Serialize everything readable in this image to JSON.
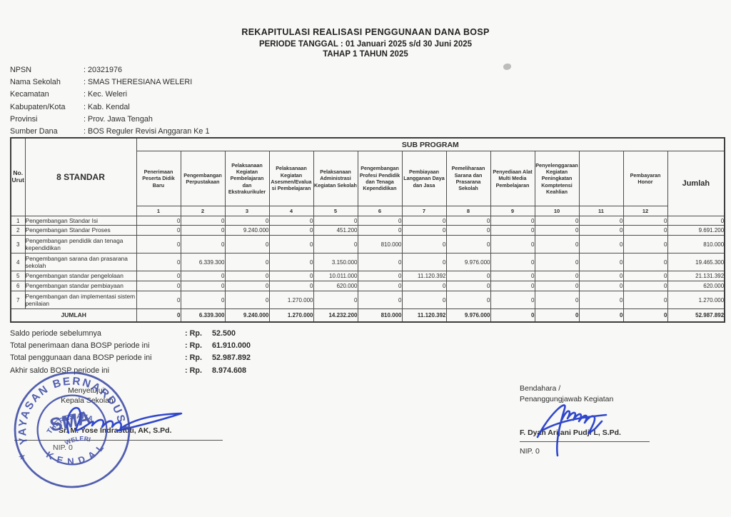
{
  "title": {
    "line1": "REKAPITULASI REALISASI PENGGUNAAN DANA BOSP",
    "line2": "PERIODE TANGGAL : 01 Januari 2025 s/d 30 Juni 2025",
    "line3": "TAHAP 1 TAHUN 2025"
  },
  "info": {
    "rows": [
      {
        "label": "NPSN",
        "value": ": 20321976"
      },
      {
        "label": "Nama Sekolah",
        "value": ": SMAS THERESIANA WELERI"
      },
      {
        "label": "Kecamatan",
        "value": ": Kec. Weleri"
      },
      {
        "label": "Kabupaten/Kota",
        "value": ": Kab. Kendal"
      },
      {
        "label": "Provinsi",
        "value": ": Prov. Jawa Tengah"
      },
      {
        "label": "Sumber Dana",
        "value": ": BOS Reguler Revisi Anggaran Ke 1"
      }
    ]
  },
  "table": {
    "corner": {
      "no_line1": "No.",
      "no_line2": "Urut"
    },
    "standar_label": "8 STANDAR",
    "sub_program_label": "SUB PROGRAM",
    "jumlah_label": "Jumlah",
    "columns": [
      {
        "num": "1",
        "label": "Penerimaan Peserta Didik Baru"
      },
      {
        "num": "2",
        "label": "Pengembangan Perpustakaan"
      },
      {
        "num": "3",
        "label": "Pelaksanaan Kegiatan Pembelajaran dan Ekstrakurikuler"
      },
      {
        "num": "4",
        "label": "Pelaksanaan Kegiatan Asesmen/Evaluasi Pembelajaran"
      },
      {
        "num": "5",
        "label": "Pelaksanaan Administrasi Kegiatan Sekolah"
      },
      {
        "num": "6",
        "label": "Pengembangan Profesi Pendidik dan Tenaga Kependidikan"
      },
      {
        "num": "7",
        "label": "Pembiayaan Langganan Daya dan Jasa"
      },
      {
        "num": "8",
        "label": "Pemeliharaan Sarana dan Prasarana Sekolah"
      },
      {
        "num": "9",
        "label": "Penyediaan Alat Multi Media Pembelajaran"
      },
      {
        "num": "10",
        "label": "Penyelenggaraan Kegiatan Peningkatan Komptetensi Keahlian"
      },
      {
        "num": "11",
        "label": ""
      },
      {
        "num": "12",
        "label": "Pembayaran Honor"
      }
    ],
    "rows": [
      {
        "no": "1",
        "label": "Pengembangan Standar Isi",
        "values": [
          "0",
          "0",
          "0",
          "0",
          "0",
          "0",
          "0",
          "0",
          "0",
          "0",
          "0",
          "0"
        ],
        "jumlah": "0"
      },
      {
        "no": "2",
        "label": "Pengembangan Standar Proses",
        "values": [
          "0",
          "0",
          "9.240.000",
          "0",
          "451.200",
          "0",
          "0",
          "0",
          "0",
          "0",
          "0",
          "0"
        ],
        "jumlah": "9.691.200"
      },
      {
        "no": "3",
        "label": "Pengembangan pendidik dan tenaga kependidikan",
        "values": [
          "0",
          "0",
          "0",
          "0",
          "0",
          "810.000",
          "0",
          "0",
          "0",
          "0",
          "0",
          "0"
        ],
        "jumlah": "810.000"
      },
      {
        "no": "4",
        "label": "Pengembangan sarana dan prasarana sekolah",
        "values": [
          "0",
          "6.339.300",
          "0",
          "0",
          "3.150.000",
          "0",
          "0",
          "9.976.000",
          "0",
          "0",
          "0",
          "0"
        ],
        "jumlah": "19.465.300"
      },
      {
        "no": "5",
        "label": "Pengembangan standar pengelolaan",
        "values": [
          "0",
          "0",
          "0",
          "0",
          "10.011.000",
          "0",
          "11.120.392",
          "0",
          "0",
          "0",
          "0",
          "0"
        ],
        "jumlah": "21.131.392"
      },
      {
        "no": "6",
        "label": "Pengembangan standar pembiayaan",
        "values": [
          "0",
          "0",
          "0",
          "0",
          "620.000",
          "0",
          "0",
          "0",
          "0",
          "0",
          "0",
          "0"
        ],
        "jumlah": "620.000"
      },
      {
        "no": "7",
        "label": "Pengembangan dan implementasi sistem penilaian",
        "values": [
          "0",
          "0",
          "0",
          "1.270.000",
          "0",
          "0",
          "0",
          "0",
          "0",
          "0",
          "0",
          "0"
        ],
        "jumlah": "1.270.000"
      }
    ],
    "total_row": {
      "label": "JUMLAH",
      "values": [
        "0",
        "6.339.300",
        "9.240.000",
        "1.270.000",
        "14.232.200",
        "810.000",
        "11.120.392",
        "9.976.000",
        "0",
        "0",
        "0",
        "0"
      ],
      "jumlah": "52.987.892"
    }
  },
  "summary": {
    "currency_label": ": Rp.",
    "rows": [
      {
        "label": "Saldo periode sebelumnya",
        "amount": "52.500"
      },
      {
        "label": "Total penerimaan dana BOSP periode ini",
        "amount": "61.910.000"
      },
      {
        "label": "Total penggunaan dana BOSP periode ini",
        "amount": "52.987.892"
      },
      {
        "label": "Akhir saldo BOSP periode ini",
        "amount": "8.974.608"
      }
    ]
  },
  "signatures": {
    "left": {
      "title1": "Menyetujui,",
      "title2": "Kepala Sekolah",
      "name": "Sr. M. Yose Indrastuti, AK, S.Pd.",
      "nip": "NIP. 0"
    },
    "right": {
      "title1": "Bendahara /",
      "title2": "Penanggungjawab Kegiatan",
      "name": "F. Dyah Arijani Pudji L, S.Pd.",
      "nip": "NIP. 0"
    }
  },
  "stamp": {
    "outer_top": "YAYASAN BERNARDUS",
    "outer_bottom": "KENDAL",
    "inner_line1": "SMA",
    "inner_line2": "THERESIANA",
    "inner_line3": "WELERI",
    "color": "#3c4aa5"
  },
  "colors": {
    "ink": "#2d2d2d",
    "table_border": "#4e4e4e",
    "stamp_blue": "#3c4aa5",
    "signature_blue": "#2038c8",
    "paper": "#f8f8f6"
  }
}
